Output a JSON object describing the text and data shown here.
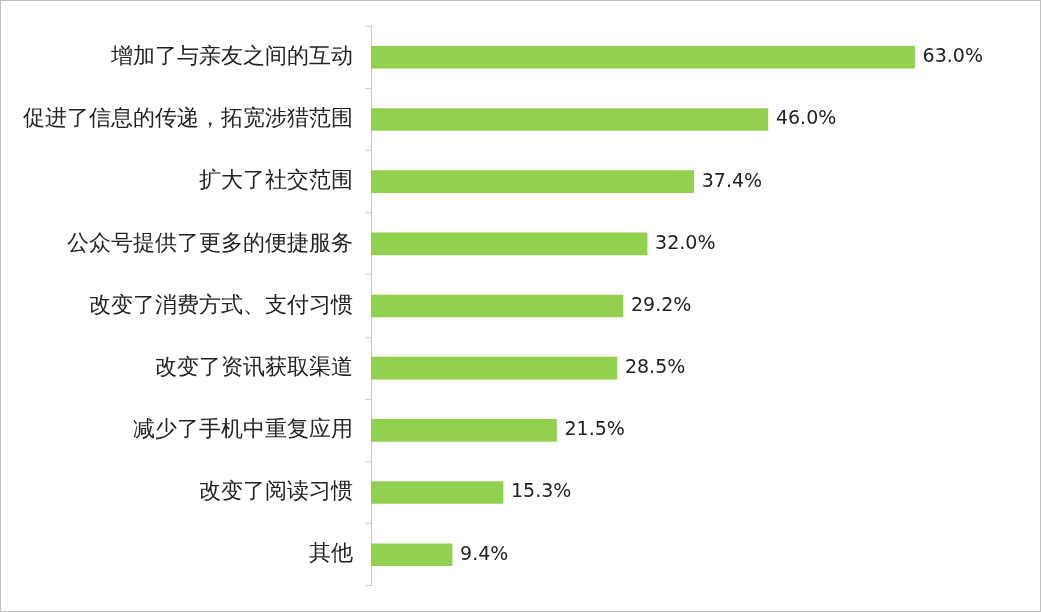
{
  "chart_data": {
    "type": "bar",
    "orientation": "horizontal",
    "categories": [
      "增加了与亲友之间的互动",
      "促进了信息的传递，拓宽涉猎范围",
      "扩大了社交范围",
      "公众号提供了更多的便捷服务",
      "改变了消费方式、支付习惯",
      "改变了资讯获取渠道",
      "减少了手机中重复应用",
      "改变了阅读习惯",
      "其他"
    ],
    "values": [
      63.0,
      46.0,
      37.4,
      32.0,
      29.2,
      28.5,
      21.5,
      15.3,
      9.4
    ],
    "value_labels": [
      "63.0%",
      "46.0%",
      "37.4%",
      "32.0%",
      "29.2%",
      "28.5%",
      "21.5%",
      "15.3%",
      "9.4%"
    ],
    "color": "#92d050",
    "legend": false
  }
}
